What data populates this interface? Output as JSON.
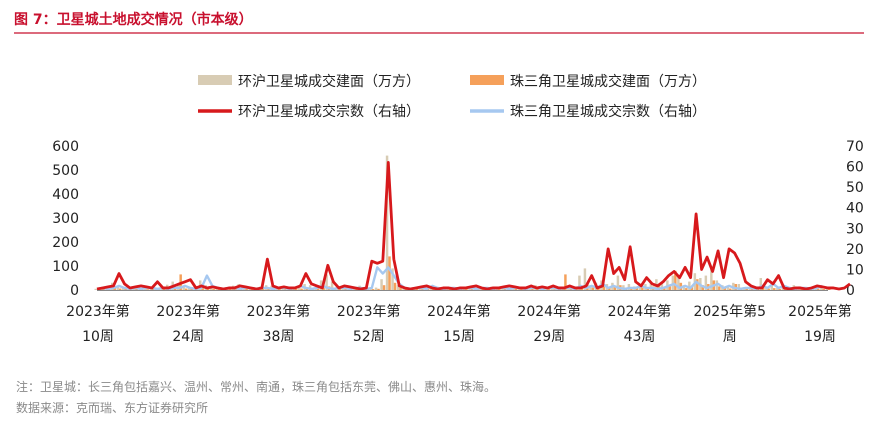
{
  "chart_data": {
    "type": "bar+line",
    "title": "图 7：卫星城土地成交情况（市本级）",
    "legend": {
      "placement": "top",
      "entries": [
        {
          "name": "环沪卫星城成交建面（万方）",
          "kind": "bar",
          "color": "#d8ccb4"
        },
        {
          "name": "珠三角卫星城成交建面（万方）",
          "kind": "bar",
          "color": "#f5a05a"
        },
        {
          "name": "环沪卫星城成交宗数（右轴）",
          "kind": "line",
          "color": "#d7191c"
        },
        {
          "name": "珠三角卫星城成交宗数（右轴）",
          "kind": "line",
          "color": "#a6c8f0"
        }
      ]
    },
    "x_tick_labels": [
      [
        "2023年第",
        "10周"
      ],
      [
        "2023年第",
        "24周"
      ],
      [
        "2023年第",
        "38周"
      ],
      [
        "2023年第",
        "52周"
      ],
      [
        "2024年第",
        "15周"
      ],
      [
        "2024年第",
        "29周"
      ],
      [
        "2024年第",
        "43周"
      ],
      [
        "2025年第5",
        "周"
      ],
      [
        "2025年第",
        "19周"
      ]
    ],
    "y_left": {
      "min": 0,
      "max": 600,
      "ticks": [
        0,
        100,
        200,
        300,
        400,
        500,
        600
      ]
    },
    "y_right": {
      "min": 0,
      "max": 70,
      "ticks": [
        0,
        10,
        20,
        30,
        40,
        50,
        60,
        70
      ]
    },
    "grid": false,
    "series": [
      {
        "name": "环沪卫星城成交建面（万方）",
        "kind": "bar",
        "axis": "left",
        "color": "#d8ccb4",
        "values": [
          5,
          8,
          12,
          30,
          15,
          8,
          10,
          12,
          6,
          8,
          14,
          10,
          12,
          22,
          35,
          28,
          15,
          8,
          10,
          40,
          20,
          10,
          12,
          8,
          10,
          18,
          25,
          12,
          8,
          10,
          15,
          20,
          18,
          12,
          10,
          8,
          12,
          15,
          25,
          20,
          10,
          40,
          65,
          35,
          12,
          10,
          8,
          15,
          18,
          10,
          8,
          10,
          45,
          560,
          90,
          20,
          10,
          8,
          12,
          10,
          14,
          8,
          10,
          12,
          6,
          8,
          10,
          12,
          8,
          6,
          10,
          8,
          14,
          10,
          8,
          12,
          10,
          8,
          10,
          12,
          20,
          14,
          10,
          8,
          10,
          12,
          10,
          14,
          60,
          90,
          20,
          30,
          40,
          25,
          30,
          60,
          20,
          25,
          15,
          20,
          25,
          35,
          45,
          30,
          40,
          60,
          55,
          20,
          35,
          70,
          50,
          60,
          90,
          40,
          20,
          15,
          30,
          25,
          10,
          8,
          10,
          50,
          12,
          20,
          8,
          12,
          10,
          20,
          15,
          10,
          8,
          12,
          10,
          14
        ]
      },
      {
        "name": "珠三角卫星城成交建面（万方）",
        "kind": "bar",
        "axis": "left",
        "color": "#f5a05a",
        "values": [
          3,
          5,
          8,
          10,
          6,
          4,
          5,
          8,
          4,
          3,
          6,
          4,
          5,
          10,
          8,
          65,
          6,
          4,
          5,
          8,
          6,
          4,
          5,
          3,
          6,
          4,
          8,
          5,
          3,
          4,
          6,
          10,
          8,
          5,
          3,
          4,
          5,
          6,
          10,
          8,
          6,
          12,
          15,
          10,
          6,
          4,
          3,
          6,
          8,
          5,
          4,
          5,
          20,
          140,
          30,
          8,
          5,
          4,
          6,
          5,
          6,
          4,
          5,
          6,
          3,
          4,
          5,
          6,
          4,
          3,
          5,
          4,
          6,
          5,
          4,
          6,
          5,
          4,
          5,
          6,
          8,
          6,
          4,
          3,
          5,
          65,
          5,
          6,
          10,
          30,
          10,
          12,
          15,
          10,
          12,
          20,
          10,
          12,
          8,
          10,
          12,
          15,
          20,
          12,
          15,
          80,
          30,
          8,
          12,
          45,
          20,
          25,
          40,
          15,
          8,
          6,
          25,
          10,
          5,
          4,
          5,
          15,
          6,
          8,
          4,
          5,
          4,
          8,
          6,
          4,
          3,
          5,
          4,
          6
        ]
      },
      {
        "name": "环沪卫星城成交宗数（右轴）",
        "kind": "line",
        "axis": "right",
        "color": "#d7191c",
        "values": [
          0.5,
          1,
          1.5,
          2,
          8,
          3,
          1,
          1.5,
          2,
          1.5,
          1,
          4,
          1,
          1,
          2,
          3,
          4,
          5,
          1,
          2,
          1,
          1.5,
          1,
          0.5,
          1,
          1,
          2,
          1.5,
          1,
          0.5,
          1,
          15,
          2,
          1,
          1.5,
          1,
          1,
          2,
          8,
          3,
          2,
          1,
          12,
          4,
          1,
          2,
          1.5,
          1,
          0.5,
          1,
          14,
          13,
          14,
          62,
          15,
          2,
          1,
          0.5,
          1,
          1.5,
          2,
          1,
          0.5,
          1,
          1,
          0.5,
          1,
          1,
          1.5,
          2,
          1,
          0.5,
          1,
          1,
          1.5,
          2,
          1.5,
          1,
          1,
          2,
          1,
          1.5,
          1,
          2,
          1,
          1,
          2,
          1,
          1,
          2,
          7,
          1,
          2,
          20,
          8,
          11,
          5,
          21,
          4,
          2,
          6,
          3,
          2,
          4,
          7,
          9,
          6,
          11,
          6,
          37,
          10,
          16,
          9,
          19,
          6,
          20,
          18,
          13,
          4,
          2,
          1,
          1,
          5,
          3,
          7,
          1,
          0.5,
          1,
          1,
          0.5,
          1,
          2,
          1.5,
          1,
          1,
          0.5,
          1,
          3
        ]
      },
      {
        "name": "珠三角卫星城成交宗数（右轴）",
        "kind": "line",
        "axis": "right",
        "color": "#a6c8f0",
        "values": [
          0.5,
          1,
          0.5,
          1,
          2,
          1,
          0.5,
          1,
          0.5,
          1,
          1,
          0.5,
          1,
          0.5,
          1,
          1,
          2,
          1,
          0.5,
          1,
          7,
          2,
          1,
          0.5,
          1,
          1,
          0.5,
          1,
          1,
          0.5,
          1,
          1,
          0.5,
          1,
          1,
          0.5,
          1,
          2,
          1,
          0.5,
          1,
          2,
          1,
          0.5,
          1,
          1,
          0.5,
          1,
          1,
          0.5,
          1,
          11,
          8,
          11,
          7,
          3,
          1,
          0.5,
          1,
          1,
          0.5,
          2,
          1,
          0.5,
          1,
          1,
          0.5,
          1,
          1,
          0.5,
          1,
          1,
          0.5,
          1,
          1,
          0.5,
          1,
          1,
          0.5,
          1,
          1,
          0.5,
          1,
          1,
          0.5,
          1,
          1,
          0.5,
          2,
          1,
          2,
          1,
          3,
          1,
          2,
          1,
          0.5,
          1,
          1,
          2,
          1,
          1,
          0.5,
          1,
          2,
          3,
          1,
          2,
          1,
          4,
          2,
          1,
          2,
          3,
          1,
          2,
          1,
          0.5,
          1,
          1,
          0.5,
          2,
          1,
          3,
          1,
          2,
          1,
          0.5,
          1,
          1,
          0.5,
          1,
          2
        ]
      }
    ]
  },
  "notes": {
    "line1": "注：卫星城：长三角包括嘉兴、温州、常州、南通，珠三角包括东莞、佛山、惠州、珠海。",
    "line2": "数据来源：克而瑞、东方证券研究所"
  }
}
